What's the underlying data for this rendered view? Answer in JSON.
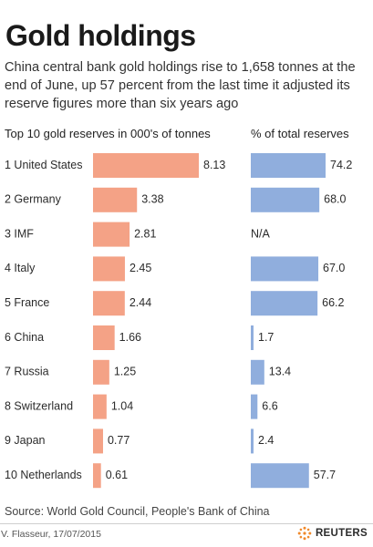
{
  "title": "Gold holdings",
  "subtitle": "China central bank gold holdings rise to 1,658 tonnes at the end of June, up 57 percent from the last time it adjusted its reserve figures more than six years ago",
  "source": "Source: World Gold Council, People's Bank of China",
  "credit": "V. Flasseur, 17/07/2015",
  "brand": "REUTERS",
  "colors": {
    "tonnes_bar": "#f4a286",
    "percent_bar": "#90aedd",
    "text": "#2b2b2b"
  },
  "chart_data": [
    {
      "type": "bar",
      "orientation": "horizontal",
      "title": "Top 10 gold reserves in 000's of tonnes",
      "categories": [
        "1 United States",
        "2 Germany",
        "3 IMF",
        "4 Italy",
        "5 France",
        "6 China",
        "7 Russia",
        "8 Switzerland",
        "9 Japan",
        "10 Netherlands"
      ],
      "values": [
        8.13,
        3.38,
        2.81,
        2.45,
        2.44,
        1.66,
        1.25,
        1.04,
        0.77,
        0.61
      ],
      "labels": [
        "8.13",
        "3.38",
        "2.81",
        "2.45",
        "2.44",
        "1.66",
        "1.25",
        "1.04",
        "0.77",
        "0.61"
      ],
      "xlim": [
        0,
        8.13
      ]
    },
    {
      "type": "bar",
      "orientation": "horizontal",
      "title": "% of total reserves",
      "categories": [
        "1 United States",
        "2 Germany",
        "3 IMF",
        "4 Italy",
        "5 France",
        "6 China",
        "7 Russia",
        "8 Switzerland",
        "9 Japan",
        "10 Netherlands"
      ],
      "values": [
        74.2,
        68.0,
        null,
        67.0,
        66.2,
        1.7,
        13.4,
        6.6,
        2.4,
        57.7
      ],
      "labels": [
        "74.2",
        "68.0",
        "N/A",
        "67.0",
        "66.2",
        "1.7",
        "13.4",
        "6.6",
        "2.4",
        "57.7"
      ],
      "xlim": [
        0,
        74.2
      ]
    }
  ]
}
